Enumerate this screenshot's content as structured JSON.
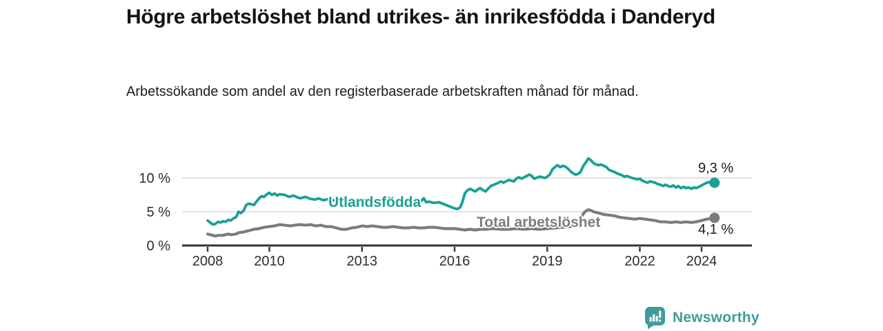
{
  "header": {
    "title": "Högre arbetslöshet bland utrikes- än inrikesfödda i Danderyd",
    "subtitle": "Arbetssökande som andel av den registerbaserade arbetskraften månad för månad."
  },
  "chart_data": {
    "type": "line",
    "title": "Högre arbetslöshet bland utrikes- än inrikesfödda i Danderyd",
    "subtitle": "Arbetssökande som andel av den registerbaserade arbetskraften månad för månad.",
    "unit": "%",
    "grid": true,
    "legend_position": "inline-labels",
    "xlim": [
      2007.2,
      2025.6
    ],
    "ylim": [
      0,
      13.4
    ],
    "x_ticks": [
      2008,
      2010,
      2013,
      2016,
      2019,
      2022,
      2024
    ],
    "y_ticks": [
      {
        "value": 0,
        "label": "0 %"
      },
      {
        "value": 5,
        "label": "5 %"
      },
      {
        "value": 10,
        "label": "10 %"
      }
    ],
    "grid_color": "#dcdcdc",
    "axis_color": "#333333",
    "series": [
      {
        "name": "Utlandsfödda",
        "color": "#17a195",
        "end_label": "9,3 %",
        "end_value": 9.3,
        "x": [
          2008.0,
          2008.08,
          2008.17,
          2008.25,
          2008.33,
          2008.42,
          2008.5,
          2008.58,
          2008.67,
          2008.75,
          2008.83,
          2008.92,
          2009.0,
          2009.08,
          2009.17,
          2009.25,
          2009.33,
          2009.42,
          2009.5,
          2009.58,
          2009.67,
          2009.75,
          2009.83,
          2009.92,
          2010.0,
          2010.08,
          2010.17,
          2010.25,
          2010.33,
          2010.5,
          2010.58,
          2010.67,
          2010.75,
          2010.83,
          2010.92,
          2011.0,
          2011.17,
          2011.33,
          2011.5,
          2011.58,
          2011.75,
          2011.92,
          2012.08,
          2012.25,
          2012.42,
          2012.58,
          2012.75,
          2012.92,
          2013.08,
          2013.25,
          2013.42,
          2013.58,
          2013.75,
          2013.92,
          2014.08,
          2014.25,
          2014.42,
          2014.58,
          2014.75,
          2014.92,
          2015.0,
          2015.08,
          2015.17,
          2015.33,
          2015.5,
          2015.67,
          2015.83,
          2016.0,
          2016.08,
          2016.17,
          2016.25,
          2016.33,
          2016.42,
          2016.5,
          2016.58,
          2016.67,
          2016.75,
          2016.83,
          2016.92,
          2017.0,
          2017.17,
          2017.33,
          2017.42,
          2017.5,
          2017.58,
          2017.75,
          2017.92,
          2018.0,
          2018.08,
          2018.17,
          2018.33,
          2018.42,
          2018.5,
          2018.58,
          2018.75,
          2018.92,
          2019.0,
          2019.08,
          2019.17,
          2019.33,
          2019.42,
          2019.5,
          2019.58,
          2019.67,
          2019.75,
          2019.83,
          2019.92,
          2020.0,
          2020.08,
          2020.17,
          2020.25,
          2020.33,
          2020.42,
          2020.5,
          2020.58,
          2020.67,
          2020.75,
          2020.83,
          2020.92,
          2021.0,
          2021.17,
          2021.25,
          2021.42,
          2021.5,
          2021.58,
          2021.75,
          2021.92,
          2022.0,
          2022.08,
          2022.25,
          2022.33,
          2022.5,
          2022.58,
          2022.67,
          2022.75,
          2022.83,
          2022.92,
          2023.0,
          2023.08,
          2023.17,
          2023.25,
          2023.33,
          2023.42,
          2023.5,
          2023.58,
          2023.67,
          2023.75,
          2023.83,
          2023.92,
          2024.0,
          2024.08,
          2024.17,
          2024.25,
          2024.33,
          2024.42
        ],
        "values": [
          3.7,
          3.4,
          3.1,
          3.2,
          3.5,
          3.4,
          3.6,
          3.5,
          3.8,
          3.7,
          4.0,
          4.2,
          5.0,
          4.8,
          5.2,
          6.0,
          6.2,
          6.1,
          6.0,
          6.5,
          7.0,
          7.3,
          7.2,
          7.6,
          7.8,
          7.5,
          7.7,
          7.4,
          7.6,
          7.5,
          7.3,
          7.2,
          7.4,
          7.3,
          7.1,
          7.0,
          7.2,
          6.9,
          6.8,
          7.0,
          6.7,
          6.9,
          6.7,
          6.5,
          6.6,
          6.4,
          6.6,
          6.8,
          6.7,
          6.8,
          6.6,
          6.7,
          6.5,
          6.6,
          6.5,
          6.6,
          6.4,
          6.5,
          6.4,
          6.6,
          7.0,
          6.4,
          6.5,
          6.3,
          6.4,
          6.1,
          5.8,
          5.5,
          5.4,
          5.6,
          6.4,
          7.7,
          8.2,
          8.4,
          8.2,
          8.0,
          8.3,
          8.5,
          8.2,
          8.0,
          8.8,
          9.1,
          9.3,
          9.5,
          9.3,
          9.7,
          9.5,
          9.9,
          10.1,
          9.9,
          10.3,
          10.5,
          10.3,
          9.9,
          10.2,
          10.0,
          10.2,
          10.5,
          11.3,
          11.9,
          11.6,
          11.8,
          11.7,
          11.4,
          11.0,
          10.7,
          10.5,
          10.6,
          10.9,
          11.8,
          12.3,
          12.9,
          12.6,
          12.2,
          12.0,
          11.9,
          12.0,
          11.8,
          11.6,
          11.2,
          10.9,
          10.7,
          10.4,
          10.2,
          10.3,
          10.0,
          9.8,
          9.9,
          9.6,
          9.3,
          9.5,
          9.3,
          9.1,
          9.0,
          8.8,
          9.0,
          8.8,
          8.7,
          8.9,
          8.6,
          8.8,
          8.5,
          8.7,
          8.5,
          8.6,
          8.4,
          8.6,
          8.5,
          8.7,
          8.9,
          9.1,
          9.3,
          9.4,
          9.2,
          9.3
        ]
      },
      {
        "name": "Total arbetslöshet",
        "color": "#7c7c7f",
        "end_label": "4,1 %",
        "end_value": 4.1,
        "x": [
          2008.0,
          2008.08,
          2008.17,
          2008.25,
          2008.33,
          2008.5,
          2008.58,
          2008.67,
          2008.75,
          2008.92,
          2009.0,
          2009.17,
          2009.33,
          2009.5,
          2009.67,
          2009.83,
          2010.0,
          2010.17,
          2010.33,
          2010.5,
          2010.67,
          2010.83,
          2011.0,
          2011.17,
          2011.33,
          2011.5,
          2011.67,
          2011.83,
          2012.0,
          2012.17,
          2012.33,
          2012.5,
          2012.67,
          2012.83,
          2013.0,
          2013.17,
          2013.33,
          2013.5,
          2013.67,
          2013.83,
          2014.0,
          2014.17,
          2014.33,
          2014.5,
          2014.67,
          2014.83,
          2015.0,
          2015.17,
          2015.33,
          2015.5,
          2015.67,
          2015.83,
          2016.0,
          2016.17,
          2016.33,
          2016.5,
          2016.67,
          2016.83,
          2017.0,
          2017.25,
          2017.5,
          2017.75,
          2018.0,
          2018.25,
          2018.5,
          2018.75,
          2019.0,
          2019.25,
          2019.5,
          2019.75,
          2019.92,
          2020.0,
          2020.08,
          2020.17,
          2020.25,
          2020.33,
          2020.42,
          2020.5,
          2020.67,
          2020.83,
          2021.0,
          2021.17,
          2021.33,
          2021.5,
          2021.67,
          2021.83,
          2022.0,
          2022.17,
          2022.33,
          2022.5,
          2022.67,
          2022.83,
          2023.0,
          2023.17,
          2023.33,
          2023.5,
          2023.67,
          2023.83,
          2024.0,
          2024.17,
          2024.33,
          2024.42
        ],
        "values": [
          1.7,
          1.6,
          1.5,
          1.4,
          1.5,
          1.5,
          1.6,
          1.7,
          1.6,
          1.7,
          1.9,
          2.0,
          2.2,
          2.4,
          2.5,
          2.7,
          2.8,
          2.9,
          3.1,
          3.0,
          2.9,
          3.0,
          3.1,
          3.0,
          3.1,
          2.9,
          3.0,
          2.8,
          2.8,
          2.6,
          2.4,
          2.4,
          2.6,
          2.7,
          2.9,
          2.8,
          2.9,
          2.8,
          2.7,
          2.7,
          2.8,
          2.7,
          2.6,
          2.6,
          2.7,
          2.6,
          2.6,
          2.7,
          2.7,
          2.6,
          2.5,
          2.5,
          2.5,
          2.4,
          2.3,
          2.4,
          2.3,
          2.4,
          2.4,
          2.5,
          2.4,
          2.4,
          2.5,
          2.4,
          2.5,
          2.4,
          2.5,
          2.6,
          2.7,
          2.8,
          3.0,
          3.3,
          4.0,
          4.7,
          5.1,
          5.3,
          5.2,
          5.0,
          4.8,
          4.6,
          4.5,
          4.4,
          4.2,
          4.1,
          4.0,
          3.9,
          4.0,
          3.9,
          3.8,
          3.7,
          3.5,
          3.5,
          3.4,
          3.5,
          3.4,
          3.5,
          3.4,
          3.5,
          3.7,
          3.9,
          4.0,
          4.1
        ]
      }
    ]
  },
  "footer": {
    "brand": "Newsworthy",
    "brand_color": "#3e9c9b",
    "logo_icon": "bar-chart-speech-badge-icon"
  }
}
